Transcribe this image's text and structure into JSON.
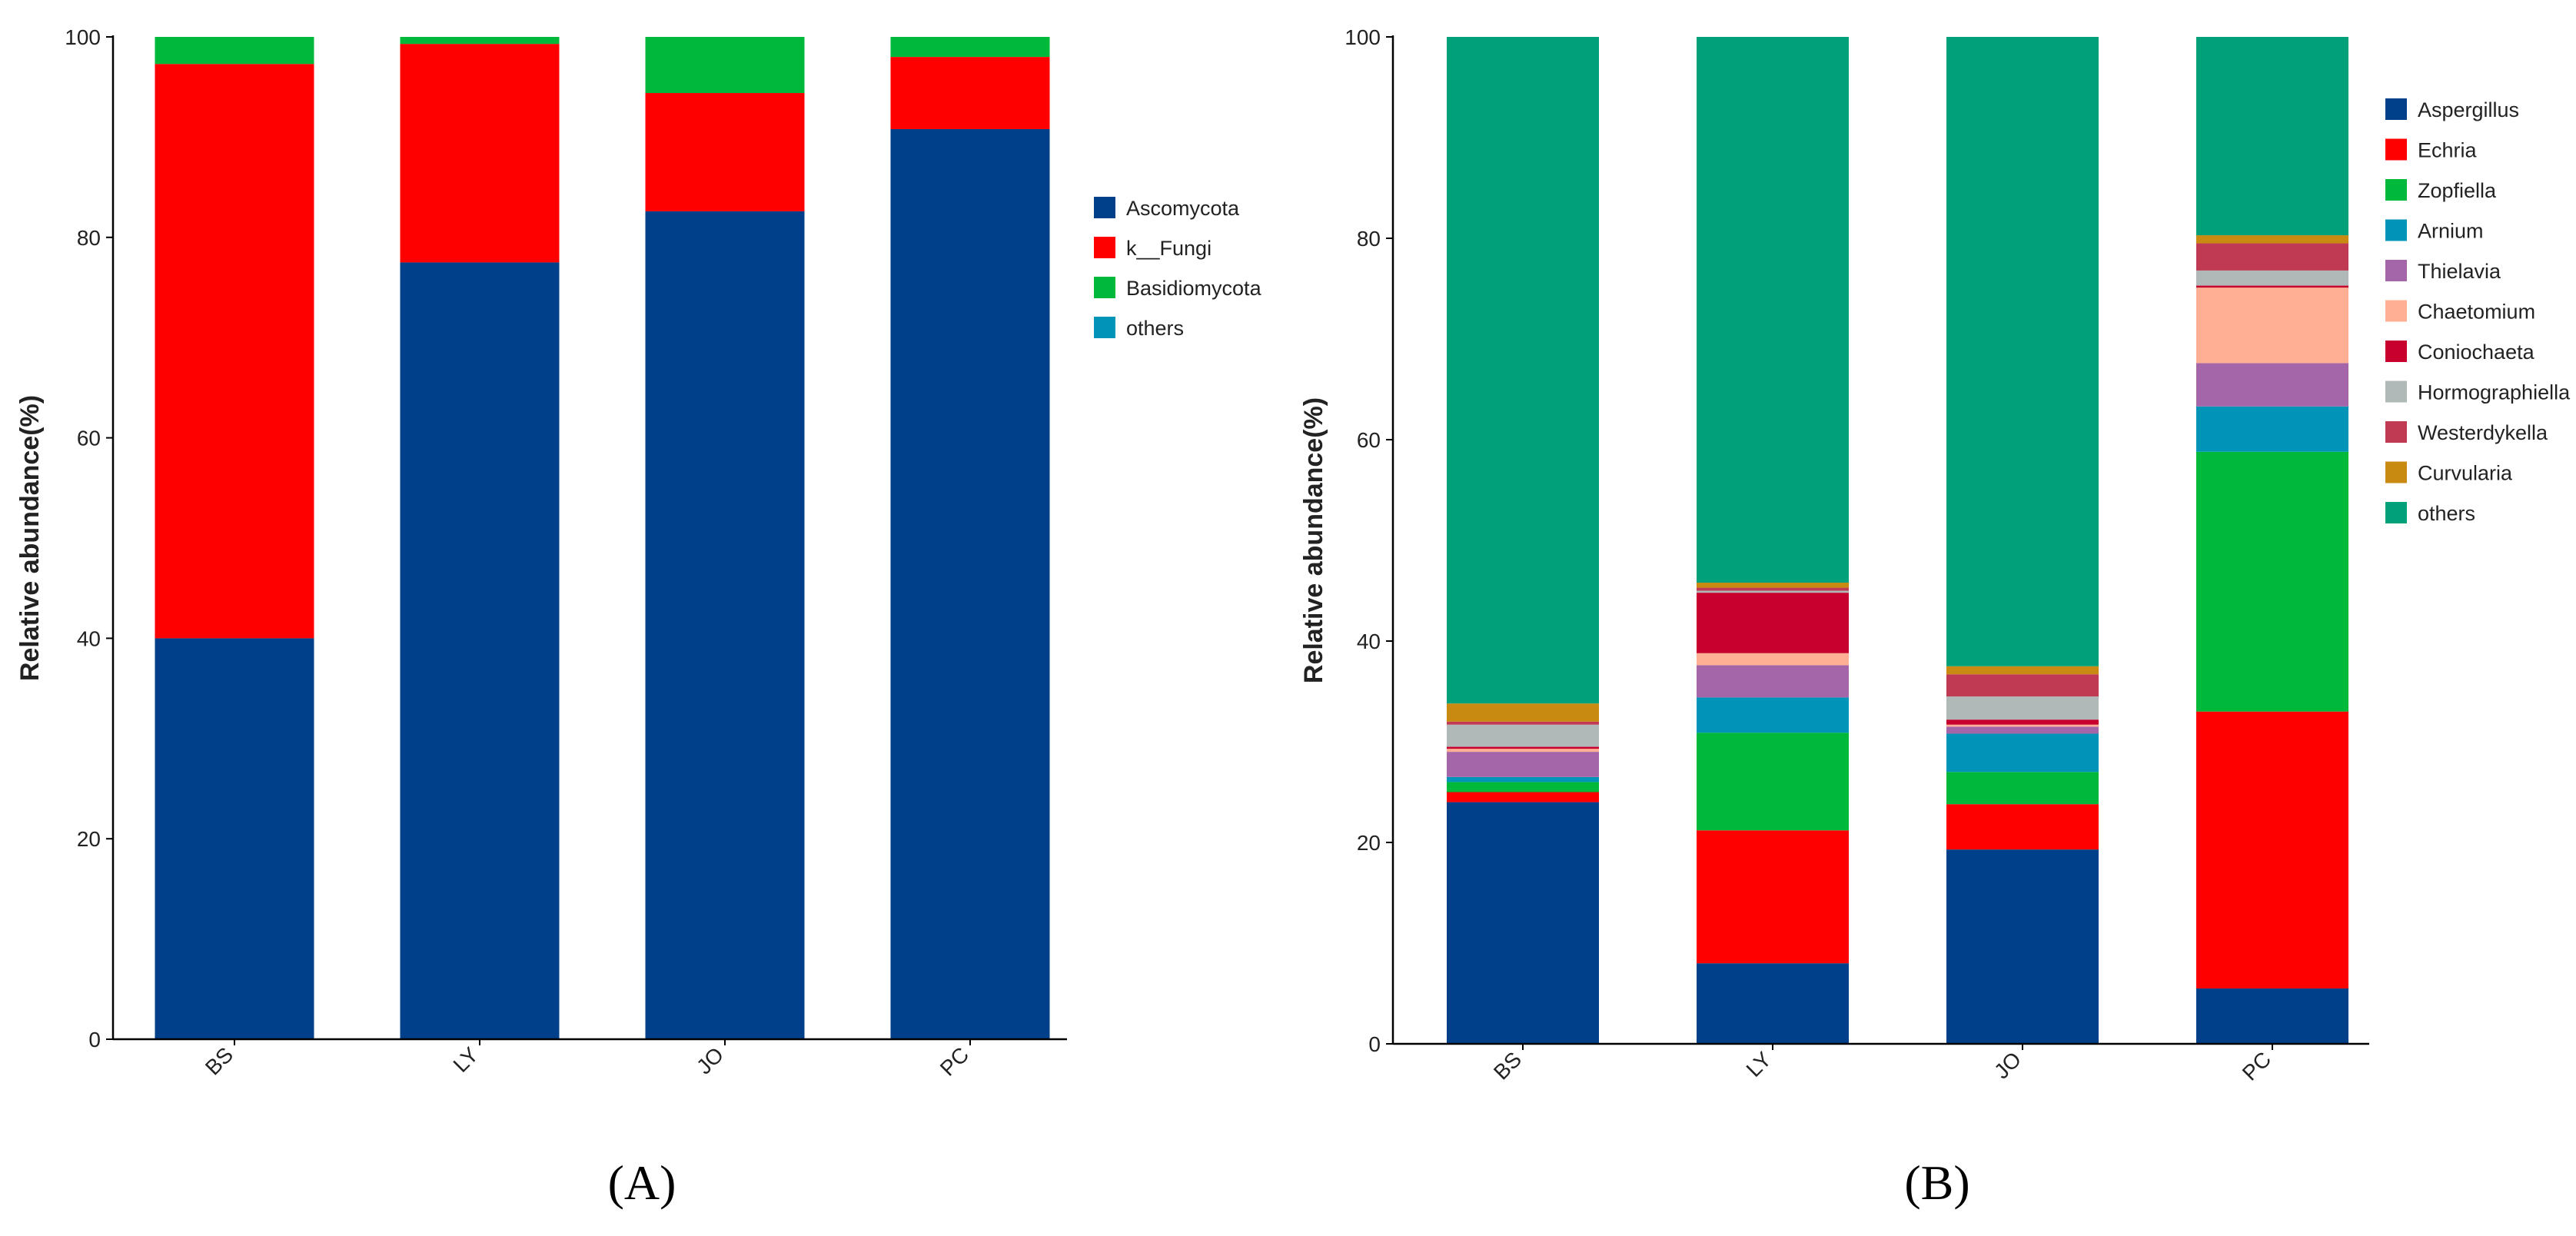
{
  "chart_data": [
    {
      "type": "bar",
      "stacked": true,
      "panel": "A",
      "ylabel": "Relative abundance(%)",
      "ylim": [
        0,
        100
      ],
      "yticks": [
        0,
        20,
        40,
        60,
        80,
        100
      ],
      "categories": [
        "BS",
        "LY",
        "JO",
        "PC"
      ],
      "legend_position": "right",
      "series": [
        {
          "name": "Ascomycota",
          "color": "#003f8a",
          "values": [
            40.0,
            77.5,
            82.6,
            90.8
          ]
        },
        {
          "name": "k__Fungi",
          "color": "#ff0000",
          "values": [
            57.3,
            21.8,
            11.8,
            7.2
          ]
        },
        {
          "name": "Basidiomycota",
          "color": "#00b83a",
          "values": [
            2.7,
            0.7,
            5.6,
            2.0
          ]
        },
        {
          "name": "others",
          "color": "#0095b8",
          "values": [
            0.0,
            0.0,
            0.0,
            0.0
          ]
        }
      ]
    },
    {
      "type": "bar",
      "stacked": true,
      "panel": "B",
      "ylabel": "Relative abundance(%)",
      "ylim": [
        0,
        100
      ],
      "yticks": [
        0,
        20,
        40,
        60,
        80,
        100
      ],
      "categories": [
        "BS",
        "LY",
        "JO",
        "PC"
      ],
      "legend_position": "right",
      "series": [
        {
          "name": "Aspergillus",
          "color": "#003f8a",
          "values": [
            24.0,
            8.0,
            19.3,
            5.5
          ]
        },
        {
          "name": "Echria",
          "color": "#ff0000",
          "values": [
            1.0,
            13.2,
            4.5,
            27.5
          ]
        },
        {
          "name": "Zopfiella",
          "color": "#00b83a",
          "values": [
            1.0,
            9.7,
            3.2,
            25.8
          ]
        },
        {
          "name": "Arnium",
          "color": "#0095b8",
          "values": [
            0.5,
            3.5,
            3.8,
            4.5
          ]
        },
        {
          "name": "Thielavia",
          "color": "#a466a8",
          "values": [
            2.5,
            3.2,
            0.7,
            4.3
          ]
        },
        {
          "name": "Chaetomium",
          "color": "#ffb094",
          "values": [
            0.3,
            1.2,
            0.2,
            7.5
          ]
        },
        {
          "name": "Coniochaeta",
          "color": "#c8002d",
          "values": [
            0.2,
            6.0,
            0.5,
            0.2
          ]
        },
        {
          "name": "Hormographiella",
          "color": "#b0b8b8",
          "values": [
            2.2,
            0.2,
            2.3,
            1.5
          ]
        },
        {
          "name": "Westerdykella",
          "color": "#c03a54",
          "values": [
            0.3,
            0.3,
            2.2,
            2.7
          ]
        },
        {
          "name": "Curvularia",
          "color": "#c88a10",
          "values": [
            1.8,
            0.5,
            0.8,
            0.8
          ]
        },
        {
          "name": "others",
          "color": "#00a07a",
          "values": [
            66.2,
            54.2,
            62.5,
            19.7
          ]
        }
      ]
    }
  ],
  "panels": {
    "a_label": "(A)",
    "b_label": "(B)"
  }
}
